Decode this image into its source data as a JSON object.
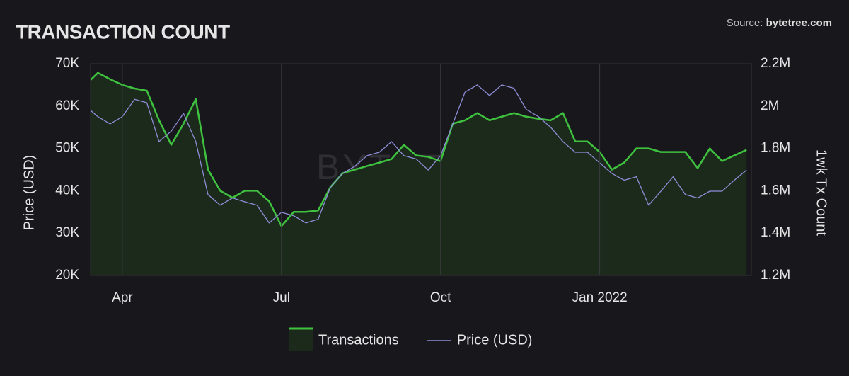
{
  "chart_data": {
    "type": "line",
    "title": "TRANSACTION COUNT",
    "source_label": "Source:",
    "source": "bytetree.com",
    "watermark": "BYTETREE",
    "ylabel": "Price (USD)",
    "y2label": "1wk Tx Count",
    "categories": [
      null,
      null,
      null,
      "Apr",
      null,
      null,
      null,
      null,
      null,
      null,
      null,
      null,
      null,
      null,
      null,
      null,
      "Jul",
      null,
      null,
      null,
      null,
      null,
      null,
      null,
      null,
      null,
      null,
      null,
      null,
      "Oct",
      null,
      null,
      null,
      null,
      null,
      null,
      null,
      null,
      null,
      null,
      null,
      null,
      "Jan 2022",
      null,
      null,
      null,
      null,
      null,
      null,
      null,
      null,
      null,
      null,
      null,
      null
    ],
    "series": [
      {
        "name": "Transactions",
        "color": "#3fc23f",
        "fill": "#1c2a1c",
        "axis": "y2",
        "values": [
          2100000,
          2157000,
          2127000,
          2100000,
          2083000,
          2073000,
          1933000,
          1817000,
          1917000,
          2033000,
          1700000,
          1600000,
          1567000,
          1600000,
          1600000,
          1550000,
          1433000,
          1500000,
          1500000,
          1507000,
          1617000,
          1683000,
          1700000,
          1717000,
          1733000,
          1750000,
          1817000,
          1767000,
          1760000,
          1740000,
          1917000,
          1933000,
          1967000,
          1933000,
          1950000,
          1967000,
          1950000,
          1940000,
          1933000,
          1967000,
          1833000,
          1833000,
          1783000,
          1700000,
          1733000,
          1800000,
          1800000,
          1783000,
          1783000,
          1783000,
          1707000,
          1800000,
          1740000,
          1767000,
          1793000
        ]
      },
      {
        "name": "Price (USD)",
        "color": "#8e8ed8",
        "values": [
          60000,
          57500,
          55800,
          57500,
          61600,
          60800,
          51600,
          54100,
          58300,
          51600,
          39100,
          36600,
          38300,
          37400,
          36600,
          32400,
          34900,
          34100,
          32400,
          33300,
          40800,
          44100,
          45800,
          48300,
          49100,
          51600,
          48300,
          47500,
          44900,
          48300,
          55800,
          63300,
          65000,
          62500,
          65000,
          64200,
          59200,
          57500,
          55000,
          51600,
          49100,
          49100,
          46600,
          44100,
          42500,
          43300,
          36600,
          39900,
          43300,
          39100,
          38300,
          39900,
          39900,
          42500,
          44900
        ]
      }
    ],
    "ylim": [
      20000,
      70000
    ],
    "yticks": [
      {
        "value": 20000,
        "label": "20K"
      },
      {
        "value": 30000,
        "label": "30K"
      },
      {
        "value": 40000,
        "label": "40K"
      },
      {
        "value": 50000,
        "label": "50K"
      },
      {
        "value": 60000,
        "label": "60K"
      },
      {
        "value": 70000,
        "label": "70K"
      }
    ],
    "y2lim": [
      1200000,
      2200000
    ],
    "y2ticks": [
      {
        "value": 1200000,
        "label": "1.2M"
      },
      {
        "value": 1400000,
        "label": "1.4M"
      },
      {
        "value": 1600000,
        "label": "1.6M"
      },
      {
        "value": 1800000,
        "label": "1.8M"
      },
      {
        "value": 2000000,
        "label": "2M"
      },
      {
        "value": 2200000,
        "label": "2.2M"
      }
    ],
    "grid": true
  }
}
